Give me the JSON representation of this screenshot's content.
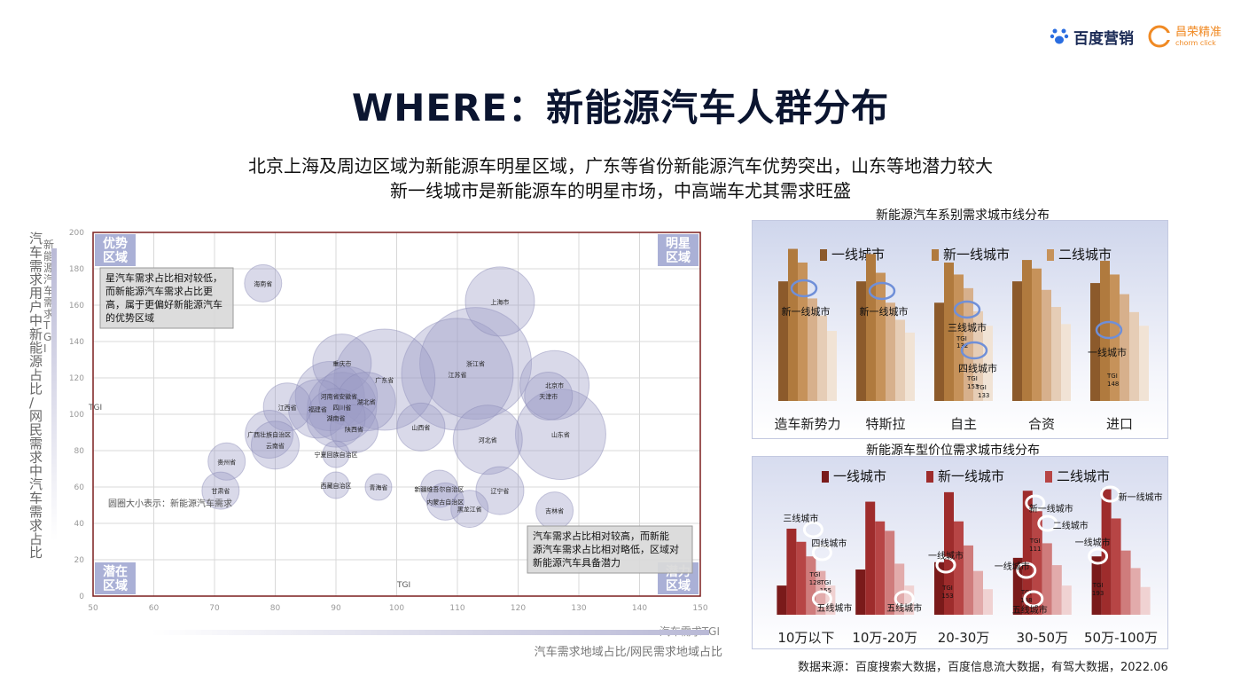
{
  "logos": {
    "baidu": "百度营销",
    "changrong": "昌荣精准",
    "changrong_sub": "chorm click"
  },
  "page_title": "WHERE：新能源汽车人群分布",
  "subtitle_line1": "北京上海及周边区域为新能源车明星区域，广东等省份新能源汽车优势突出，山东等地潜力较大",
  "subtitle_line2": "新一线城市是新能源车的明星市场，中高端车尤其需求旺盛",
  "source": "数据来源：百度搜索大数据，百度信息流大数据，有驾大数据，2022.06",
  "colors": {
    "bubble": "#9c9cc6",
    "bubble_edge": "#8a8ab6",
    "plot_border": "#7b1f1f",
    "quadrant": "#aab0d6",
    "tier1_brown": "#8c5a2b",
    "tier1_red": "#8b1e1e"
  },
  "chart_data": [
    {
      "type": "scatter",
      "xlabel": "汽车需求地域占比/网民需求地域占比",
      "xlabel_axis_tag": "汽车需求TGI",
      "xtick_tgi": "TGI",
      "ylabel": "汽车需求用户中新能源占比/网民需求中汽车需求占比",
      "ylabel_tag": "新能源汽车需求TGI",
      "ytick_tgi": "TGI",
      "xlim": [
        50,
        150
      ],
      "ylim": [
        0,
        200
      ],
      "xticks": [
        50,
        60,
        70,
        80,
        90,
        100,
        110,
        120,
        130,
        140,
        150
      ],
      "yticks": [
        0,
        20,
        40,
        60,
        80,
        100,
        120,
        140,
        160,
        180,
        200
      ],
      "grid": true,
      "quadrants": {
        "top_left": "优势区域",
        "top_right": "明星区域",
        "bottom_left": "潜在区域",
        "bottom_right": "潜力区域"
      },
      "note_top": "星汽车需求占比相对较低，而新能源汽车需求占比更高，属于更偏好新能源汽车的优势区域",
      "note_bottom": "汽车需求占比相对较高，而新能源汽车需求占比相对略低，区域对新能源汽车具备潜力",
      "bubble_note": "圆圈大小表示：新能源汽车需求",
      "points": [
        {
          "name": "海南省",
          "x": 78,
          "y": 172,
          "size": 2
        },
        {
          "name": "上海市",
          "x": 117,
          "y": 162,
          "size": 5
        },
        {
          "name": "重庆市",
          "x": 91,
          "y": 128,
          "size": 4
        },
        {
          "name": "浙江省",
          "x": 113,
          "y": 128,
          "size": 9
        },
        {
          "name": "江苏省",
          "x": 110,
          "y": 122,
          "size": 9
        },
        {
          "name": "广东省",
          "x": 98,
          "y": 119,
          "size": 8
        },
        {
          "name": "北京市",
          "x": 126,
          "y": 116,
          "size": 5
        },
        {
          "name": "天津市",
          "x": 125,
          "y": 110,
          "size": 3
        },
        {
          "name": "河南省",
          "x": 89,
          "y": 110,
          "size": 5
        },
        {
          "name": "安徽省",
          "x": 92,
          "y": 110,
          "size": 4
        },
        {
          "name": "湖北省",
          "x": 95,
          "y": 107,
          "size": 4
        },
        {
          "name": "江西省",
          "x": 82,
          "y": 104,
          "size": 3
        },
        {
          "name": "福建省",
          "x": 87,
          "y": 103,
          "size": 4
        },
        {
          "name": "四川省",
          "x": 91,
          "y": 104,
          "size": 5
        },
        {
          "name": "湖南省",
          "x": 90,
          "y": 98,
          "size": 4
        },
        {
          "name": "陕西省",
          "x": 93,
          "y": 92,
          "size": 3
        },
        {
          "name": "山西省",
          "x": 104,
          "y": 93,
          "size": 3
        },
        {
          "name": "山东省",
          "x": 127,
          "y": 89,
          "size": 7
        },
        {
          "name": "河北省",
          "x": 115,
          "y": 86,
          "size": 5
        },
        {
          "name": "广西壮族自治区",
          "x": 79,
          "y": 89,
          "size": 3
        },
        {
          "name": "云南省",
          "x": 80,
          "y": 83,
          "size": 3
        },
        {
          "name": "宁夏回族自治区",
          "x": 90,
          "y": 78,
          "size": 1
        },
        {
          "name": "贵州省",
          "x": 72,
          "y": 74,
          "size": 2
        },
        {
          "name": "西藏自治区",
          "x": 90,
          "y": 61,
          "size": 1
        },
        {
          "name": "青海省",
          "x": 97,
          "y": 60,
          "size": 1
        },
        {
          "name": "甘肃省",
          "x": 71,
          "y": 58,
          "size": 2
        },
        {
          "name": "新疆维吾尔自治区",
          "x": 107,
          "y": 59,
          "size": 2
        },
        {
          "name": "辽宁省",
          "x": 117,
          "y": 58,
          "size": 3
        },
        {
          "name": "内蒙古自治区",
          "x": 108,
          "y": 52,
          "size": 2
        },
        {
          "name": "黑龙江省",
          "x": 112,
          "y": 48,
          "size": 2
        },
        {
          "name": "吉林省",
          "x": 126,
          "y": 47,
          "size": 2
        }
      ]
    },
    {
      "type": "bar",
      "title": "新能源汽车系别需求城市线分布",
      "categories": [
        "造车新势力",
        "特斯拉",
        "自主",
        "合资",
        "进口"
      ],
      "series": [
        {
          "name": "一线城市",
          "values": [
            140,
            140,
            115,
            140,
            138
          ]
        },
        {
          "name": "新一线城市",
          "values": [
            178,
            172,
            162,
            165,
            164
          ]
        },
        {
          "name": "二线城市",
          "values": [
            162,
            150,
            148,
            155,
            148
          ]
        },
        {
          "name": "",
          "values": [
            120,
            115,
            132,
            130,
            125
          ]
        },
        {
          "name": "",
          "values": [
            100,
            95,
            105,
            110,
            104
          ]
        },
        {
          "name": "",
          "values": [
            82,
            80,
            88,
            90,
            88
          ]
        }
      ],
      "annotations": [
        {
          "text": "新一线城市",
          "category": "造车新势力"
        },
        {
          "text": "新一线城市",
          "category": "特斯拉"
        },
        {
          "text": "三线城市",
          "category": "自主",
          "tgi": "TGI 132"
        },
        {
          "text": "四线城市",
          "category": "自主",
          "tgi": "TGI 153",
          "tgi2": "TGI 133"
        },
        {
          "text": "一线城市",
          "category": "进口",
          "tgi": "TGI 148"
        }
      ]
    },
    {
      "type": "bar",
      "title": "新能源车型价位需求城市线分布",
      "categories": [
        "10万以下",
        "10万-20万",
        "20-30万",
        "30-50万",
        "50万-100万"
      ],
      "series": [
        {
          "name": "一线城市",
          "values": [
            40,
            62,
            72,
            78,
            80
          ]
        },
        {
          "name": "新一线城市",
          "values": [
            118,
            155,
            168,
            170,
            172
          ]
        },
        {
          "name": "二线城市",
          "values": [
            100,
            128,
            128,
            142,
            132
          ]
        },
        {
          "name": "",
          "values": [
            80,
            115,
            95,
            98,
            88
          ]
        },
        {
          "name": "",
          "values": [
            60,
            70,
            60,
            68,
            64
          ]
        },
        {
          "name": "",
          "values": [
            40,
            40,
            35,
            40,
            38
          ]
        }
      ],
      "annotations": [
        {
          "text": "三线城市",
          "category": "10万以下"
        },
        {
          "text": "四线城市",
          "category": "10万以下",
          "tgi": "TGI 128",
          "tgi2": "TGI 155"
        },
        {
          "text": "五线城市",
          "category": "10万以下"
        },
        {
          "text": "五线城市",
          "category": "10万-20万"
        },
        {
          "text": "一线城市",
          "category": "20-30万",
          "tgi": "TGI 153"
        },
        {
          "text": "一线城市",
          "category": "30-50万",
          "tgi": "TGI 138"
        },
        {
          "text": "五线城市",
          "category": "30-50万"
        },
        {
          "text": "新一线城市",
          "category": "30-50万",
          "tgi": "TGI 111"
        },
        {
          "text": "二线城市",
          "category": "30-50万"
        },
        {
          "text": "新一线城市",
          "category": "50万-100万"
        },
        {
          "text": "一线城市",
          "category": "50万-100万",
          "tgi": "TGI 193"
        }
      ]
    }
  ]
}
